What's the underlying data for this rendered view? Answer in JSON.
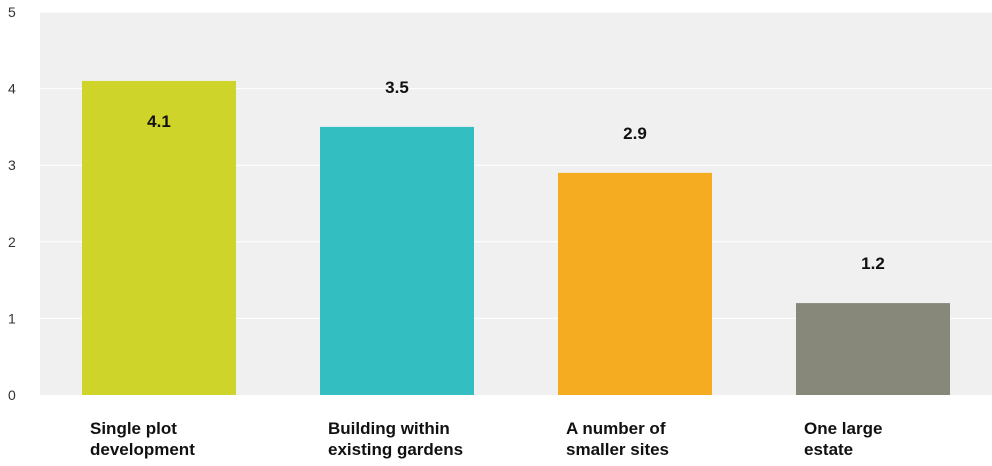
{
  "chart_data": {
    "type": "bar",
    "title": "",
    "xlabel": "",
    "ylabel": "",
    "ylim": [
      0,
      5
    ],
    "yticks": [
      "0",
      "1",
      "2",
      "3",
      "4",
      "5"
    ],
    "categories": [
      "Single plot\ndevelopment",
      "Building within\nexisting gardens",
      "A number of\nsmaller sites",
      "One large\nestate"
    ],
    "values": [
      4.1,
      3.5,
      2.9,
      1.2
    ],
    "value_labels": [
      "4.1",
      "3.5",
      "2.9",
      "1.2"
    ],
    "colors": [
      "#cfd42a",
      "#33bfc1",
      "#f5ac20",
      "#88887a"
    ],
    "grid": true,
    "legend": "none"
  }
}
